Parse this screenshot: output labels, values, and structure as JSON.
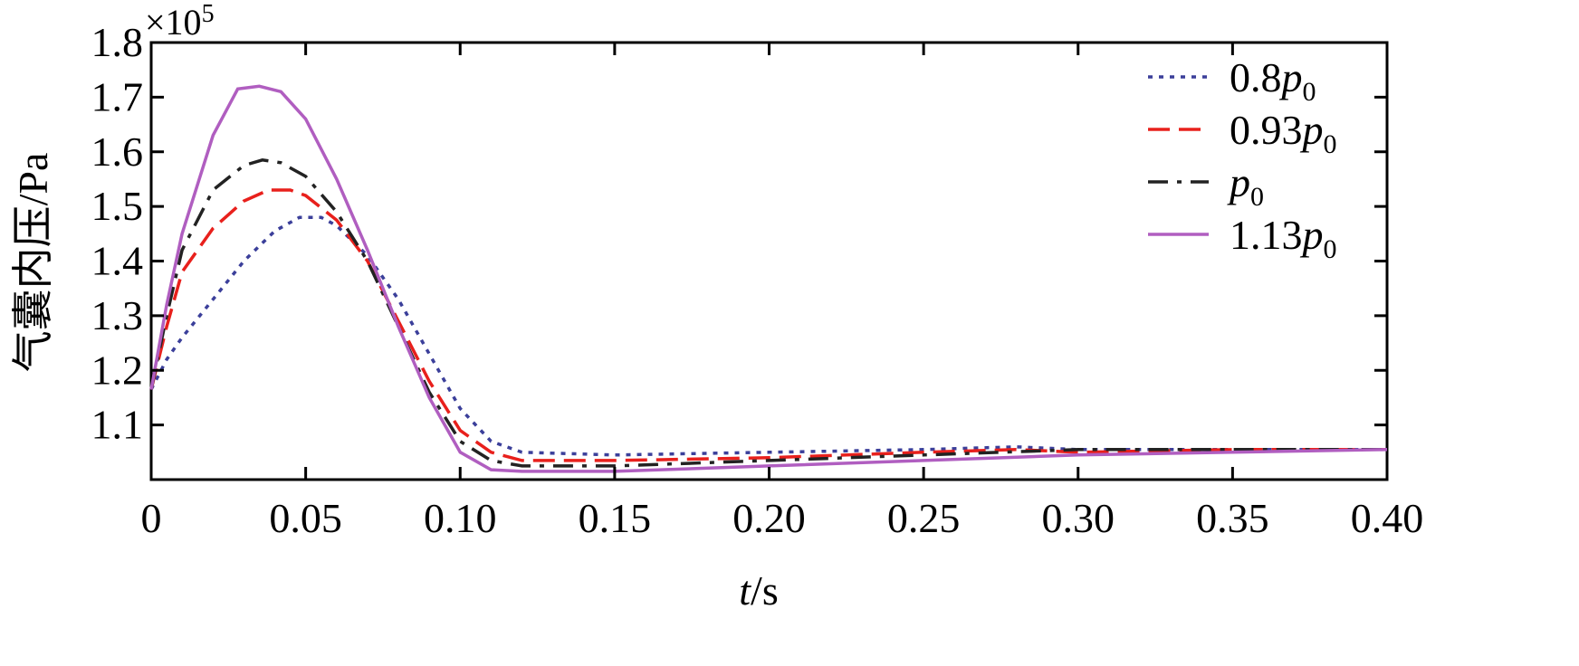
{
  "chart_data": {
    "type": "line",
    "xlabel_var": "t",
    "xlabel_unit": "/s",
    "ylabel": "气囊内压/Pa",
    "y_multiplier": "×10",
    "y_multiplier_exp": "5",
    "xlim": [
      0,
      0.4
    ],
    "ylim": [
      1.0,
      1.8
    ],
    "x_ticks": [
      0,
      0.05,
      0.1,
      0.15,
      0.2,
      0.25,
      0.3,
      0.35,
      0.4
    ],
    "x_tick_labels": [
      "0",
      "0.05",
      "0.10",
      "0.15",
      "0.20",
      "0.25",
      "0.30",
      "0.35",
      "0.40"
    ],
    "y_ticks": [
      1.1,
      1.2,
      1.3,
      1.4,
      1.5,
      1.6,
      1.7,
      1.8
    ],
    "y_tick_labels": [
      "1.1",
      "1.2",
      "1.3",
      "1.4",
      "1.5",
      "1.6",
      "1.7",
      "1.8"
    ],
    "grid": false,
    "legend_position": "top-right",
    "series": [
      {
        "name_prefix": "0.8",
        "name_var": "p",
        "name_sub": "0",
        "color": "#3b3f9a",
        "dash": "dotted",
        "points": [
          [
            0,
            1.165
          ],
          [
            0.005,
            1.22
          ],
          [
            0.01,
            1.26
          ],
          [
            0.02,
            1.33
          ],
          [
            0.03,
            1.4
          ],
          [
            0.04,
            1.455
          ],
          [
            0.048,
            1.48
          ],
          [
            0.055,
            1.48
          ],
          [
            0.06,
            1.465
          ],
          [
            0.07,
            1.41
          ],
          [
            0.08,
            1.33
          ],
          [
            0.09,
            1.23
          ],
          [
            0.1,
            1.13
          ],
          [
            0.11,
            1.07
          ],
          [
            0.12,
            1.05
          ],
          [
            0.15,
            1.045
          ],
          [
            0.2,
            1.05
          ],
          [
            0.25,
            1.055
          ],
          [
            0.28,
            1.06
          ],
          [
            0.3,
            1.055
          ],
          [
            0.35,
            1.055
          ],
          [
            0.4,
            1.055
          ]
        ]
      },
      {
        "name_prefix": "0.93",
        "name_var": "p",
        "name_sub": "0",
        "color": "#e8201c",
        "dash": "long-dash",
        "points": [
          [
            0,
            1.165
          ],
          [
            0.005,
            1.28
          ],
          [
            0.01,
            1.38
          ],
          [
            0.02,
            1.46
          ],
          [
            0.03,
            1.51
          ],
          [
            0.038,
            1.53
          ],
          [
            0.045,
            1.53
          ],
          [
            0.05,
            1.52
          ],
          [
            0.06,
            1.475
          ],
          [
            0.07,
            1.4
          ],
          [
            0.08,
            1.29
          ],
          [
            0.09,
            1.18
          ],
          [
            0.1,
            1.09
          ],
          [
            0.11,
            1.05
          ],
          [
            0.12,
            1.035
          ],
          [
            0.15,
            1.035
          ],
          [
            0.2,
            1.04
          ],
          [
            0.25,
            1.05
          ],
          [
            0.28,
            1.055
          ],
          [
            0.3,
            1.05
          ],
          [
            0.35,
            1.055
          ],
          [
            0.4,
            1.055
          ]
        ]
      },
      {
        "name_prefix": "",
        "name_var": "p",
        "name_sub": "0",
        "color": "#222222",
        "dash": "dash-dot",
        "points": [
          [
            0,
            1.165
          ],
          [
            0.005,
            1.3
          ],
          [
            0.01,
            1.42
          ],
          [
            0.02,
            1.53
          ],
          [
            0.03,
            1.575
          ],
          [
            0.036,
            1.585
          ],
          [
            0.042,
            1.58
          ],
          [
            0.05,
            1.555
          ],
          [
            0.06,
            1.49
          ],
          [
            0.07,
            1.4
          ],
          [
            0.08,
            1.28
          ],
          [
            0.09,
            1.16
          ],
          [
            0.1,
            1.07
          ],
          [
            0.11,
            1.035
          ],
          [
            0.12,
            1.025
          ],
          [
            0.15,
            1.025
          ],
          [
            0.2,
            1.035
          ],
          [
            0.25,
            1.045
          ],
          [
            0.3,
            1.055
          ],
          [
            0.35,
            1.055
          ],
          [
            0.4,
            1.055
          ]
        ]
      },
      {
        "name_prefix": "1.13",
        "name_var": "p",
        "name_sub": "0",
        "color": "#b05ec0",
        "dash": "solid",
        "points": [
          [
            0,
            1.165
          ],
          [
            0.005,
            1.32
          ],
          [
            0.01,
            1.45
          ],
          [
            0.02,
            1.63
          ],
          [
            0.028,
            1.715
          ],
          [
            0.035,
            1.72
          ],
          [
            0.042,
            1.71
          ],
          [
            0.05,
            1.66
          ],
          [
            0.06,
            1.55
          ],
          [
            0.07,
            1.42
          ],
          [
            0.08,
            1.28
          ],
          [
            0.09,
            1.15
          ],
          [
            0.1,
            1.05
          ],
          [
            0.11,
            1.018
          ],
          [
            0.12,
            1.015
          ],
          [
            0.15,
            1.015
          ],
          [
            0.2,
            1.025
          ],
          [
            0.25,
            1.035
          ],
          [
            0.3,
            1.045
          ],
          [
            0.35,
            1.05
          ],
          [
            0.4,
            1.055
          ]
        ]
      }
    ]
  }
}
